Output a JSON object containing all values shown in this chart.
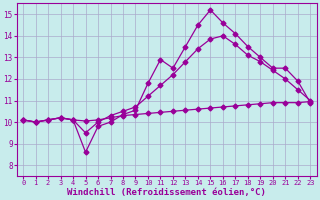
{
  "background_color": "#c8ecec",
  "grid_color": "#aaaacc",
  "line_color": "#990099",
  "xlabel": "Windchill (Refroidissement éolien,°C)",
  "xlabel_fontsize": 6.5,
  "xlim": [
    -0.5,
    23.5
  ],
  "ylim": [
    7.5,
    15.5
  ],
  "yticks": [
    8,
    9,
    10,
    11,
    12,
    13,
    14,
    15
  ],
  "xticks": [
    0,
    1,
    2,
    3,
    4,
    5,
    6,
    7,
    8,
    9,
    10,
    11,
    12,
    13,
    14,
    15,
    16,
    17,
    18,
    19,
    20,
    21,
    22,
    23
  ],
  "line1_x": [
    0,
    1,
    2,
    3,
    4,
    5,
    6,
    7,
    8,
    9,
    10,
    11,
    12,
    13,
    14,
    15,
    16,
    17,
    18,
    19,
    20,
    21,
    22,
    23
  ],
  "line1_y": [
    10.1,
    10.0,
    10.1,
    10.2,
    10.1,
    10.05,
    10.1,
    10.2,
    10.3,
    10.35,
    10.4,
    10.45,
    10.5,
    10.55,
    10.6,
    10.65,
    10.7,
    10.75,
    10.8,
    10.85,
    10.9,
    10.9,
    10.9,
    10.95
  ],
  "line2_x": [
    0,
    1,
    2,
    3,
    4,
    5,
    6,
    7,
    8,
    9,
    10,
    11,
    12,
    13,
    14,
    15,
    16,
    17,
    18,
    19,
    20,
    21,
    22,
    23
  ],
  "line2_y": [
    10.1,
    10.0,
    10.1,
    10.2,
    10.1,
    9.5,
    10.0,
    10.3,
    10.5,
    10.7,
    11.2,
    11.7,
    12.2,
    12.8,
    13.4,
    13.85,
    14.0,
    13.6,
    13.1,
    12.8,
    12.4,
    12.0,
    11.5,
    11.0
  ],
  "line3_x": [
    0,
    1,
    2,
    3,
    4,
    5,
    6,
    7,
    8,
    9,
    10,
    11,
    12,
    13,
    14,
    15,
    16,
    17,
    18,
    19,
    20,
    21,
    22,
    23
  ],
  "line3_y": [
    10.1,
    10.0,
    10.1,
    10.2,
    10.1,
    8.6,
    9.8,
    10.0,
    10.35,
    10.55,
    11.8,
    12.9,
    12.5,
    13.5,
    14.5,
    15.2,
    14.6,
    14.1,
    13.5,
    13.0,
    12.5,
    12.5,
    11.9,
    10.9
  ]
}
